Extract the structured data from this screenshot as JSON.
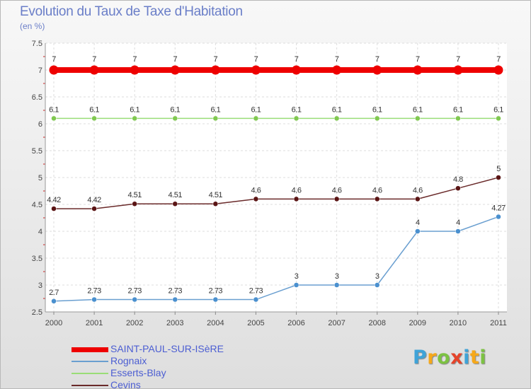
{
  "title": "Evolution du Taux de Taxe d'Habitation",
  "unit_label": "(en %)",
  "logo": {
    "text": "Proxiti",
    "colors": [
      "#3fa3d8",
      "#f6a81a",
      "#7cc242",
      "#e5432a",
      "#3fa3d8",
      "#f6a81a",
      "#7cc242"
    ]
  },
  "chart_data": {
    "type": "line",
    "title": "Evolution du Taux de Taxe d'Habitation",
    "ylabel": "(en %)",
    "xlabel": "",
    "ylim": [
      2.5,
      7.5
    ],
    "yticks": [
      "2.5",
      "3",
      "3.5",
      "4",
      "4.5",
      "5",
      "5.5",
      "6",
      "6.5",
      "7",
      "7.5"
    ],
    "x": [
      "2000",
      "2001",
      "2002",
      "2003",
      "2004",
      "2005",
      "2006",
      "2007",
      "2008",
      "2009",
      "2010",
      "2011"
    ],
    "grid": true,
    "legend_position": "bottom-left",
    "series": [
      {
        "name": "SAINT-PAUL-SUR-ISèRE",
        "color": "#ee0000",
        "marker": "#ee0000",
        "thick": true,
        "values": [
          7,
          7,
          7,
          7,
          7,
          7,
          7,
          7,
          7,
          7,
          7,
          7
        ],
        "labels": [
          "7",
          "7",
          "7",
          "7",
          "7",
          "7",
          "7",
          "7",
          "7",
          "7",
          "7",
          "7"
        ]
      },
      {
        "name": "Rognaix",
        "color": "#6a9fd0",
        "marker": "#4a90cf",
        "thick": false,
        "values": [
          2.7,
          2.73,
          2.73,
          2.73,
          2.73,
          2.73,
          3,
          3,
          3,
          4,
          4,
          4.27
        ],
        "labels": [
          "2.7",
          "2.73",
          "2.73",
          "2.73",
          "2.73",
          "2.73",
          "3",
          "3",
          "3",
          "4",
          "4",
          "4.27"
        ]
      },
      {
        "name": "Esserts-Blay",
        "color": "#99dd77",
        "marker": "#80c850",
        "thick": false,
        "values": [
          6.1,
          6.1,
          6.1,
          6.1,
          6.1,
          6.1,
          6.1,
          6.1,
          6.1,
          6.1,
          6.1,
          6.1
        ],
        "labels": [
          "6.1",
          "6.1",
          "6.1",
          "6.1",
          "6.1",
          "6.1",
          "6.1",
          "6.1",
          "6.1",
          "6.1",
          "6.1",
          "6.1"
        ]
      },
      {
        "name": "Cevins",
        "color": "#6a2a2a",
        "marker": "#5a1414",
        "thick": false,
        "values": [
          4.42,
          4.42,
          4.51,
          4.51,
          4.51,
          4.6,
          4.6,
          4.6,
          4.6,
          4.6,
          4.8,
          5
        ],
        "labels": [
          "4.42",
          "4.42",
          "4.51",
          "4.51",
          "4.51",
          "4.6",
          "4.6",
          "4.6",
          "4.6",
          "4.6",
          "4.8",
          "5"
        ]
      }
    ]
  }
}
